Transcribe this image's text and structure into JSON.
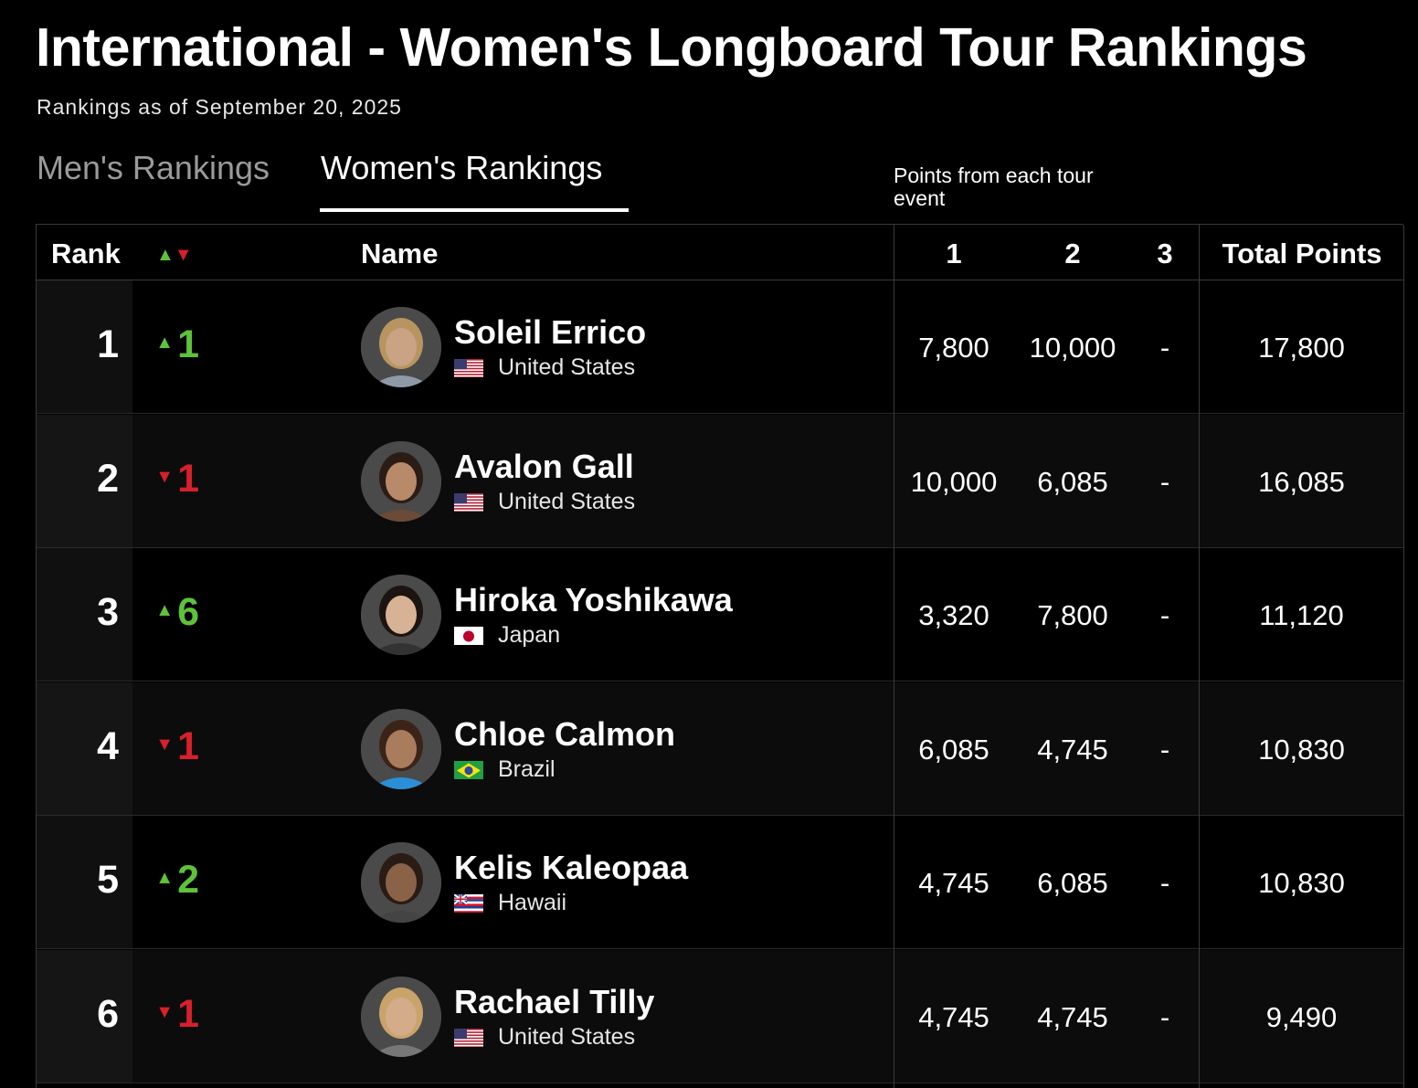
{
  "page": {
    "title": "International - Women's Longboard Tour Rankings",
    "subtitle": "Rankings as of September 20, 2025"
  },
  "tabs": {
    "men": "Men's Rankings",
    "women": "Women's Rankings",
    "active": "women"
  },
  "points_note": "Points from each tour event",
  "table": {
    "headers": {
      "rank": "Rank",
      "move_up": "▲",
      "move_down": "▼",
      "name": "Name",
      "event1": "1",
      "event2": "2",
      "event3": "3",
      "total": "Total Points"
    },
    "rows": [
      {
        "rank": "1",
        "move": "1",
        "direction": "up",
        "name": "Soleil Errico",
        "country": "United States",
        "flag": "us",
        "e1": "7,800",
        "e2": "10,000",
        "e3": "-",
        "total": "17,800"
      },
      {
        "rank": "2",
        "move": "1",
        "direction": "down",
        "name": "Avalon Gall",
        "country": "United States",
        "flag": "us",
        "e1": "10,000",
        "e2": "6,085",
        "e3": "-",
        "total": "16,085"
      },
      {
        "rank": "3",
        "move": "6",
        "direction": "up",
        "name": "Hiroka Yoshikawa",
        "country": "Japan",
        "flag": "jp",
        "e1": "3,320",
        "e2": "7,800",
        "e3": "-",
        "total": "11,120"
      },
      {
        "rank": "4",
        "move": "1",
        "direction": "down",
        "name": "Chloe Calmon",
        "country": "Brazil",
        "flag": "br",
        "e1": "6,085",
        "e2": "4,745",
        "e3": "-",
        "total": "10,830"
      },
      {
        "rank": "5",
        "move": "2",
        "direction": "up",
        "name": "Kelis Kaleopaa",
        "country": "Hawaii",
        "flag": "hi",
        "e1": "4,745",
        "e2": "6,085",
        "e3": "-",
        "total": "10,830"
      },
      {
        "rank": "6",
        "move": "1",
        "direction": "down",
        "name": "Rachael Tilly",
        "country": "United States",
        "flag": "us",
        "e1": "4,745",
        "e2": "4,745",
        "e3": "-",
        "total": "9,490"
      }
    ]
  },
  "colors": {
    "up": "#5ec23a",
    "down": "#d7202b",
    "background": "#000000"
  }
}
